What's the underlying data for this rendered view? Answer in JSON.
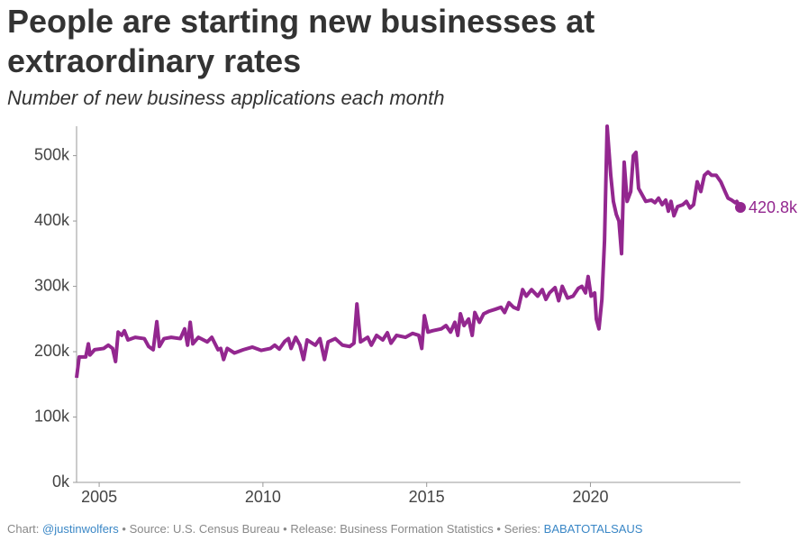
{
  "chart_data": {
    "type": "line",
    "title": "People are starting new businesses at extraordinary rates",
    "subtitle": "Number of new business applications each month",
    "footer": {
      "chart_label": "Chart:",
      "author": "@justinwolfers",
      "separator": "•",
      "source": "Source: U.S. Census Bureau",
      "release": "Release: Business Formation Statistics",
      "series_label": "Series:",
      "series": "BABATOTALSAUS"
    },
    "xlim": [
      2004.31,
      2024.58
    ],
    "xticks": [
      2005,
      2010,
      2015,
      2020
    ],
    "ylim": [
      0,
      545000
    ],
    "yticks": [
      {
        "value": 0,
        "label": "0k"
      },
      {
        "value": 100000,
        "label": "100k"
      },
      {
        "value": 200000,
        "label": "200k"
      },
      {
        "value": 300000,
        "label": "300k"
      },
      {
        "value": 400000,
        "label": "400k"
      },
      {
        "value": 500000,
        "label": "500k"
      }
    ],
    "grid": false,
    "series": [
      {
        "color": "#93278f",
        "x": [
          2004.31,
          2004.39,
          2004.59,
          2004.67,
          2004.72,
          2004.86,
          2005.14,
          2005.28,
          2005.41,
          2005.5,
          2005.58,
          2005.69,
          2005.77,
          2005.88,
          2006.1,
          2006.38,
          2006.51,
          2006.65,
          2006.76,
          2006.84,
          2006.98,
          2007.2,
          2007.48,
          2007.61,
          2007.7,
          2007.78,
          2007.86,
          2008.03,
          2008.3,
          2008.44,
          2008.63,
          2008.71,
          2008.8,
          2008.91,
          2009.13,
          2009.4,
          2009.68,
          2009.95,
          2010.23,
          2010.36,
          2010.5,
          2010.67,
          2010.78,
          2010.86,
          2011.0,
          2011.13,
          2011.24,
          2011.35,
          2011.6,
          2011.74,
          2011.88,
          2011.99,
          2012.21,
          2012.43,
          2012.65,
          2012.78,
          2012.87,
          2012.98,
          2013.2,
          2013.31,
          2013.47,
          2013.66,
          2013.8,
          2013.91,
          2014.08,
          2014.35,
          2014.57,
          2014.76,
          2014.85,
          2014.93,
          2015.04,
          2015.18,
          2015.45,
          2015.59,
          2015.73,
          2015.86,
          2015.95,
          2016.03,
          2016.14,
          2016.28,
          2016.39,
          2016.47,
          2016.61,
          2016.74,
          2016.91,
          2017.1,
          2017.27,
          2017.38,
          2017.51,
          2017.65,
          2017.79,
          2017.93,
          2018.04,
          2018.2,
          2018.39,
          2018.53,
          2018.64,
          2018.75,
          2018.92,
          2019.03,
          2019.14,
          2019.3,
          2019.47,
          2019.63,
          2019.74,
          2019.85,
          2019.93,
          2020.02,
          2020.13,
          2020.18,
          2020.26,
          2020.35,
          2020.43,
          2020.51,
          2020.62,
          2020.7,
          2020.79,
          2020.87,
          2020.95,
          2021.03,
          2021.12,
          2021.23,
          2021.31,
          2021.39,
          2021.47,
          2021.58,
          2021.69,
          2021.86,
          2021.97,
          2022.08,
          2022.19,
          2022.3,
          2022.38,
          2022.46,
          2022.55,
          2022.66,
          2022.82,
          2022.93,
          2023.04,
          2023.15,
          2023.26,
          2023.37,
          2023.48,
          2023.59,
          2023.7,
          2023.84,
          2023.98,
          2024.11,
          2024.2,
          2024.31,
          2024.42,
          2024.47,
          2024.53,
          2024.58
        ],
        "values": [
          160000,
          192000,
          192000,
          212000,
          195000,
          203000,
          205000,
          210000,
          205000,
          185000,
          230000,
          225000,
          232000,
          218000,
          222000,
          220000,
          208000,
          203000,
          246000,
          208000,
          220000,
          222000,
          220000,
          235000,
          210000,
          245000,
          212000,
          222000,
          215000,
          222000,
          203000,
          205000,
          188000,
          205000,
          198000,
          203000,
          207000,
          202000,
          205000,
          210000,
          204000,
          216000,
          220000,
          205000,
          222000,
          210000,
          188000,
          218000,
          210000,
          220000,
          188000,
          215000,
          220000,
          210000,
          208000,
          213000,
          273000,
          215000,
          222000,
          210000,
          225000,
          218000,
          229000,
          213000,
          225000,
          222000,
          228000,
          225000,
          205000,
          255000,
          230000,
          232000,
          235000,
          240000,
          230000,
          245000,
          225000,
          258000,
          240000,
          250000,
          225000,
          260000,
          245000,
          258000,
          262000,
          265000,
          268000,
          260000,
          275000,
          268000,
          265000,
          295000,
          285000,
          295000,
          285000,
          295000,
          280000,
          290000,
          298000,
          278000,
          300000,
          282000,
          285000,
          297000,
          300000,
          290000,
          315000,
          285000,
          290000,
          250000,
          235000,
          280000,
          370000,
          545000,
          470000,
          430000,
          410000,
          400000,
          350000,
          490000,
          430000,
          445000,
          500000,
          505000,
          450000,
          440000,
          430000,
          432000,
          428000,
          435000,
          425000,
          432000,
          415000,
          430000,
          408000,
          422000,
          425000,
          430000,
          420000,
          425000,
          460000,
          445000,
          470000,
          475000,
          470000,
          470000,
          460000,
          445000,
          435000,
          432000,
          428000,
          430000,
          425000,
          420800
        ],
        "value_labels": {
          "153": "420.8k"
        }
      }
    ]
  }
}
